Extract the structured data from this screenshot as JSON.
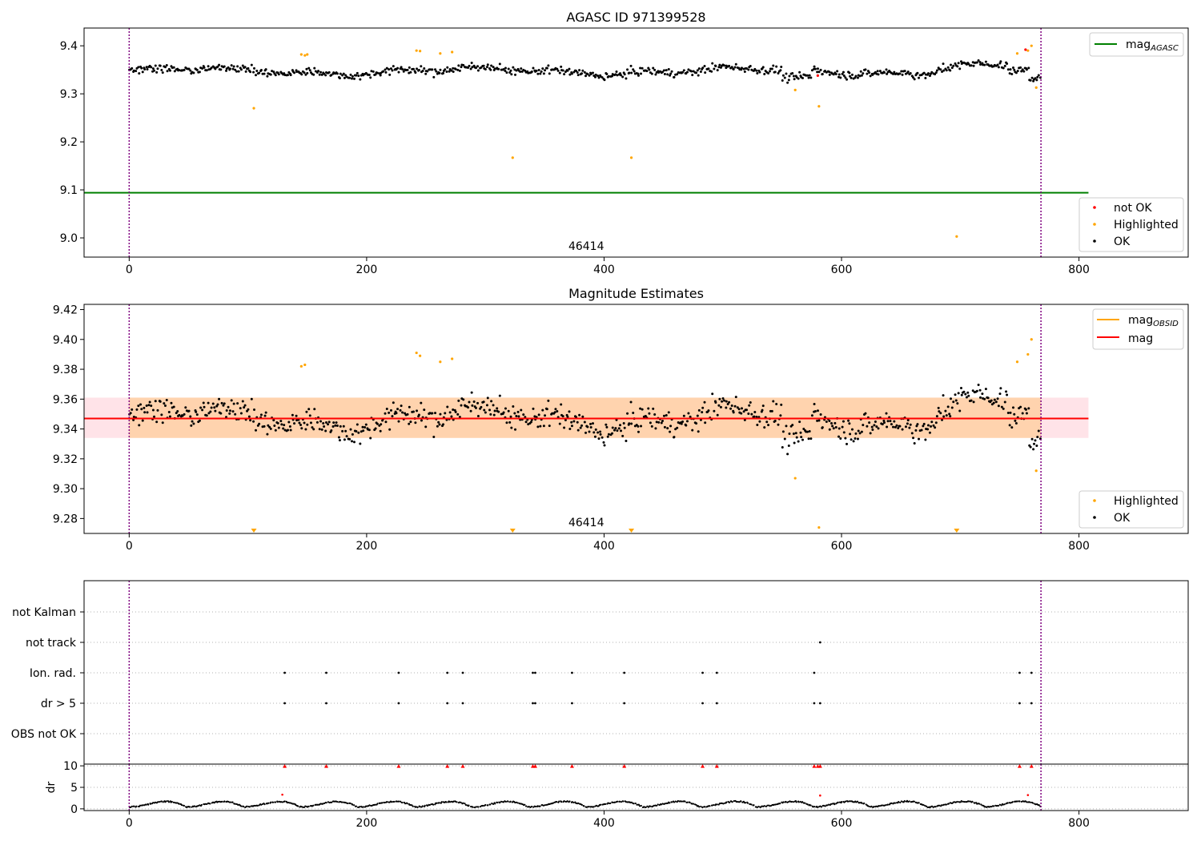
{
  "figure": {
    "panels": [
      "AGASC ID 971399528",
      "Magnitude Estimates",
      "",
      ""
    ]
  },
  "chart_data": [
    {
      "type": "scatter",
      "title": "AGASC ID 971399528",
      "xlim": [
        -38,
        892
      ],
      "ylim": [
        8.96,
        9.437
      ],
      "x_ticks": [
        "0",
        "200",
        "400",
        "600",
        "800"
      ],
      "y_ticks": [
        "9.0",
        "9.1",
        "9.2",
        "9.3",
        "9.4"
      ],
      "obsid_label": "46414",
      "obsid_boundaries": [
        0,
        768
      ],
      "hline": {
        "name": "mag",
        "name_sub": "AGASC",
        "y": 9.094,
        "x_end": 808,
        "color": "#008000"
      },
      "series": [
        {
          "name": "not OK",
          "color": "#ff0000",
          "points": [
            [
              580,
              9.338
            ],
            [
              755,
              9.392
            ]
          ]
        },
        {
          "name": "Highlighted",
          "color": "#ffa500",
          "points": [
            [
              105,
              9.27
            ],
            [
              145,
              9.382
            ],
            [
              148,
              9.38
            ],
            [
              150,
              9.382
            ],
            [
              242,
              9.39
            ],
            [
              245,
              9.389
            ],
            [
              262,
              9.384
            ],
            [
              272,
              9.387
            ],
            [
              323,
              9.167
            ],
            [
              423,
              9.167
            ],
            [
              561,
              9.308
            ],
            [
              581,
              9.274
            ],
            [
              697,
              9.003
            ],
            [
              748,
              9.384
            ],
            [
              757,
              9.39
            ],
            [
              760,
              9.4
            ],
            [
              764,
              9.313
            ]
          ]
        },
        {
          "name": "OK",
          "color": "#000000",
          "n_points": 768,
          "x_range": [
            0,
            768
          ],
          "y_range": [
            9.31,
            9.378
          ],
          "description": "dense band of nightly estimates"
        }
      ],
      "legend_top": "top-right",
      "legend_bottom": "lower-right"
    },
    {
      "type": "scatter",
      "title": "Magnitude Estimates",
      "xlim": [
        -38,
        892
      ],
      "ylim": [
        9.27,
        9.4235
      ],
      "x_ticks": [
        "0",
        "200",
        "400",
        "600",
        "800"
      ],
      "y_ticks": [
        "9.28",
        "9.30",
        "9.32",
        "9.34",
        "9.36",
        "9.38",
        "9.40",
        "9.42"
      ],
      "obsid_label": "46414",
      "obsid_boundaries": [
        0,
        768
      ],
      "mag_line": {
        "name": "mag",
        "y": 9.347,
        "color": "#ff0000"
      },
      "mag_band": {
        "y_low": 9.334,
        "y_high": 9.361
      },
      "obsid_line": {
        "name": "mag",
        "name_sub": "OBSID",
        "color": "#ffa500"
      },
      "series": [
        {
          "name": "Highlighted",
          "color": "#ffa500",
          "points": [
            [
              145,
              9.382
            ],
            [
              148,
              9.383
            ],
            [
              242,
              9.391
            ],
            [
              245,
              9.389
            ],
            [
              262,
              9.385
            ],
            [
              272,
              9.387
            ],
            [
              561,
              9.307
            ],
            [
              581,
              9.274
            ],
            [
              748,
              9.385
            ],
            [
              757,
              9.39
            ],
            [
              760,
              9.4
            ],
            [
              764,
              9.312
            ]
          ]
        },
        {
          "name": "OK",
          "color": "#000000",
          "n_points": 768,
          "x_range": [
            0,
            768
          ],
          "y_range": [
            9.315,
            9.378
          ]
        }
      ],
      "out_of_range_markers_x": [
        105,
        323,
        423,
        697
      ],
      "legend_top": "top-right",
      "legend_bottom": "lower-right"
    },
    {
      "type": "scatter",
      "title": "",
      "xlim": [
        -38,
        892
      ],
      "category_labels": [
        "not Kalman",
        "not track",
        "Ion. rad.",
        "dr > 5",
        "OBS not OK"
      ],
      "flag_points": {
        "not Kalman": [],
        "not track": [
          582
        ],
        "Ion. rad.": [
          131,
          166,
          227,
          268,
          281,
          340,
          342,
          373,
          417,
          483,
          495,
          577,
          750,
          760
        ],
        "dr > 5": [
          131,
          166,
          227,
          268,
          281,
          340,
          342,
          373,
          417,
          483,
          495,
          577,
          582,
          750,
          760
        ],
        "OBS not OK": []
      },
      "obsid_boundaries": [
        0,
        768
      ]
    },
    {
      "type": "scatter",
      "title": "",
      "xlim": [
        -38,
        892
      ],
      "ylim": [
        -0.4,
        10.4
      ],
      "ylabel": "dr",
      "x_ticks": [
        "0",
        "200",
        "400",
        "600",
        "800"
      ],
      "y_ticks": [
        "0",
        "5",
        "10"
      ],
      "clipped_at": 10,
      "clipped_x": [
        131,
        166,
        227,
        268,
        281,
        340,
        342,
        373,
        417,
        483,
        495,
        577,
        580,
        582,
        750,
        760
      ],
      "red_points": [
        [
          129,
          3.3
        ],
        [
          582,
          3.1
        ],
        [
          757,
          3.2
        ]
      ],
      "ok_series": {
        "n_points": 768,
        "x_range": [
          0,
          768
        ],
        "y_range": [
          0,
          3.0
        ]
      },
      "obsid_boundaries": [
        0,
        768
      ]
    }
  ]
}
